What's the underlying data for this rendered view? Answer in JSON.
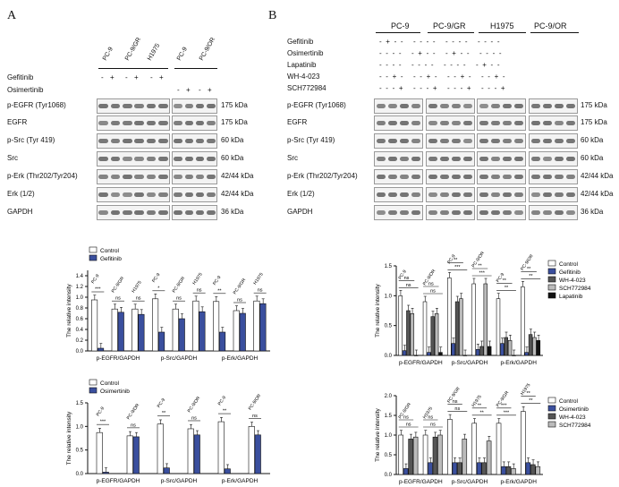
{
  "panelA": {
    "letter": "A",
    "cell_lines": [
      "PC-9",
      "PC-9/GR",
      "H1975",
      "PC-9",
      "PC-9/OR"
    ],
    "treatments": [
      {
        "name": "Gefitinib",
        "signs": [
          "-",
          "+",
          "-",
          "+",
          "-",
          "+"
        ]
      },
      {
        "name": "Osimertinib",
        "signs": [
          "-",
          "+",
          "-",
          "+"
        ]
      }
    ],
    "rows": [
      {
        "label": "p-EGFR (Tyr1068)",
        "kda": "175 kDa"
      },
      {
        "label": "EGFR",
        "kda": "175 kDa"
      },
      {
        "label": "p-Src (Tyr 419)",
        "kda": "60 kDa"
      },
      {
        "label": "Src",
        "kda": "60 kDa"
      },
      {
        "label": "p-Erk (Thr202/Tyr204)",
        "kda": "42/44 kDa"
      },
      {
        "label": "Erk (1/2)",
        "kda": "42/44 kDa"
      },
      {
        "label": "GAPDH",
        "kda": "36 kDa"
      }
    ]
  },
  "panelB": {
    "letter": "B",
    "cell_lines": [
      "PC-9",
      "PC-9/GR",
      "H1975",
      "PC-9/OR"
    ],
    "treatments": [
      {
        "name": "Gefitinib",
        "signs": "- + - -   - - - -   - - - -   - - - -"
      },
      {
        "name": "Osimertinib",
        "signs": "- - - -   - + - -   - + - -   - - - -"
      },
      {
        "name": "Lapatinib",
        "signs": "- - - -   - - - -   - - - -   - + - -"
      },
      {
        "name": "WH-4-023",
        "signs": "- - + -   - - + -   - - + -   - - + -"
      },
      {
        "name": "SCH772984",
        "signs": "- - - +   - - - +   - - - +   - - - +"
      }
    ],
    "rows": [
      {
        "label": "p-EGFR (Tyr1068)",
        "kda": "175 kDa"
      },
      {
        "label": "EGFR",
        "kda": "175 kDa"
      },
      {
        "label": "p-Src (Tyr 419)",
        "kda": "60 kDa"
      },
      {
        "label": "Src",
        "kda": "60 kDa"
      },
      {
        "label": "p-Erk (Thr202/Tyr204)",
        "kda": "42/44 kDa"
      },
      {
        "label": "Erk (1/2)",
        "kda": "42/44 kDa"
      },
      {
        "label": "GAPDH",
        "kda": "36 kDa"
      }
    ]
  },
  "colors": {
    "control": "#ffffff",
    "gefitinib": "#3a4f9e",
    "osimertinib": "#3a4f9e",
    "wh": "#555555",
    "sch": "#bbbbbb",
    "lapatinib": "#111111"
  },
  "chart_data": [
    {
      "type": "bar",
      "ylabel": "The relative intensity",
      "ylim": [
        0,
        1.5
      ],
      "yticks": [
        "0.0",
        "0.2",
        "0.4",
        "0.6",
        "0.8",
        "1.0",
        "1.2",
        "1.4"
      ],
      "legend": [
        "Control",
        "Gefitinib"
      ],
      "groups": [
        "p-EGFR/GAPDH",
        "p-Src/GAPDH",
        "p-Erk/GAPDH"
      ],
      "cell_lines": [
        "PC-9",
        "PC-9/GR",
        "H1975"
      ],
      "series": [
        {
          "name": "Control",
          "values": [
            0.95,
            0.78,
            0.78,
            0.97,
            0.78,
            0.93,
            0.92,
            0.75,
            0.93
          ]
        },
        {
          "name": "Gefitinib",
          "values": [
            0.05,
            0.72,
            0.68,
            0.35,
            0.6,
            0.73,
            0.35,
            0.7,
            0.88
          ]
        }
      ],
      "annotations": [
        "***",
        "ns",
        "ns",
        "*",
        "ns",
        "ns",
        "**",
        "ns",
        "ns"
      ]
    },
    {
      "type": "bar",
      "ylabel": "The relative intensity",
      "ylim": [
        0,
        1.5
      ],
      "yticks": [
        "0.0",
        "0.5",
        "1.0",
        "1.5"
      ],
      "legend": [
        "Control",
        "Osimertinib"
      ],
      "groups": [
        "p-EGFR/GAPDH",
        "p-Src/GAPDH",
        "p-Erk/GAPDH"
      ],
      "cell_lines": [
        "PC-9",
        "PC-9/OR"
      ],
      "series": [
        {
          "name": "Control",
          "values": [
            0.87,
            0.8,
            1.05,
            0.95,
            1.1,
            1.0
          ]
        },
        {
          "name": "Osimertinib",
          "values": [
            0.03,
            0.78,
            0.12,
            0.82,
            0.1,
            0.82
          ]
        }
      ],
      "annotations": [
        "***",
        "ns",
        "**",
        "ns",
        "**",
        "ns"
      ]
    },
    {
      "type": "bar",
      "ylabel": "The relative intensity",
      "ylim": [
        0,
        1.5
      ],
      "yticks": [
        "0.0",
        "0.5",
        "1.0",
        "1.5"
      ],
      "legend": [
        "Control",
        "Gefitinib",
        "WH-4-023",
        "SCH772984",
        "Lapatinib"
      ],
      "groups": [
        "p-EGFR/GAPDH",
        "p-Src/GAPDH",
        "p-Erk/GAPDH"
      ],
      "cell_lines": [
        "PC-9",
        "PC-9/OR"
      ],
      "series": [
        {
          "name": "Control",
          "values": [
            1.0,
            0.9,
            1.3,
            1.2,
            0.95,
            1.15
          ]
        },
        {
          "name": "Gefitinib",
          "values": [
            0.08,
            0.05,
            0.2,
            0.1,
            0.2,
            0.05
          ]
        },
        {
          "name": "WH-4-023",
          "values": [
            0.75,
            0.65,
            0.9,
            0.15,
            0.3,
            0.35
          ]
        },
        {
          "name": "SCH772984",
          "values": [
            0.7,
            0.7,
            0.95,
            1.2,
            0.25,
            0.3
          ]
        },
        {
          "name": "Lapatinib",
          "values": [
            0.0,
            0.05,
            0.0,
            0.15,
            0.0,
            0.25
          ]
        }
      ],
      "annotations": [
        "ns",
        "ns",
        "ns",
        "ns",
        "***",
        "**",
        "***",
        "**",
        "**",
        "**",
        "**",
        "**"
      ]
    },
    {
      "type": "bar",
      "ylabel": "The relative intensity",
      "ylim": [
        0,
        2.0
      ],
      "yticks": [
        "0.0",
        "0.5",
        "1.0",
        "1.5",
        "2.0"
      ],
      "legend": [
        "Control",
        "Osimertinib",
        "WH-4-023",
        "SCH772984"
      ],
      "groups": [
        "p-EGFR/GAPDH",
        "p-Src/GAPDH",
        "p-Erk/GAPDH"
      ],
      "cell_lines": [
        "PC-9/GR",
        "H1975"
      ],
      "series": [
        {
          "name": "Control",
          "values": [
            1.0,
            1.0,
            1.4,
            1.3,
            1.3,
            1.6
          ]
        },
        {
          "name": "Osimertinib",
          "values": [
            0.15,
            0.3,
            0.3,
            0.3,
            0.2,
            0.3
          ]
        },
        {
          "name": "WH-4-023",
          "values": [
            0.9,
            0.95,
            0.3,
            0.3,
            0.2,
            0.25
          ]
        },
        {
          "name": "SCH772984",
          "values": [
            0.95,
            1.0,
            0.9,
            0.85,
            0.15,
            0.2
          ]
        }
      ],
      "annotations": [
        "ns",
        "ns",
        "ns",
        "ns",
        "ns",
        "ns",
        "**",
        "**",
        "***",
        "***",
        "**",
        "**"
      ]
    }
  ]
}
